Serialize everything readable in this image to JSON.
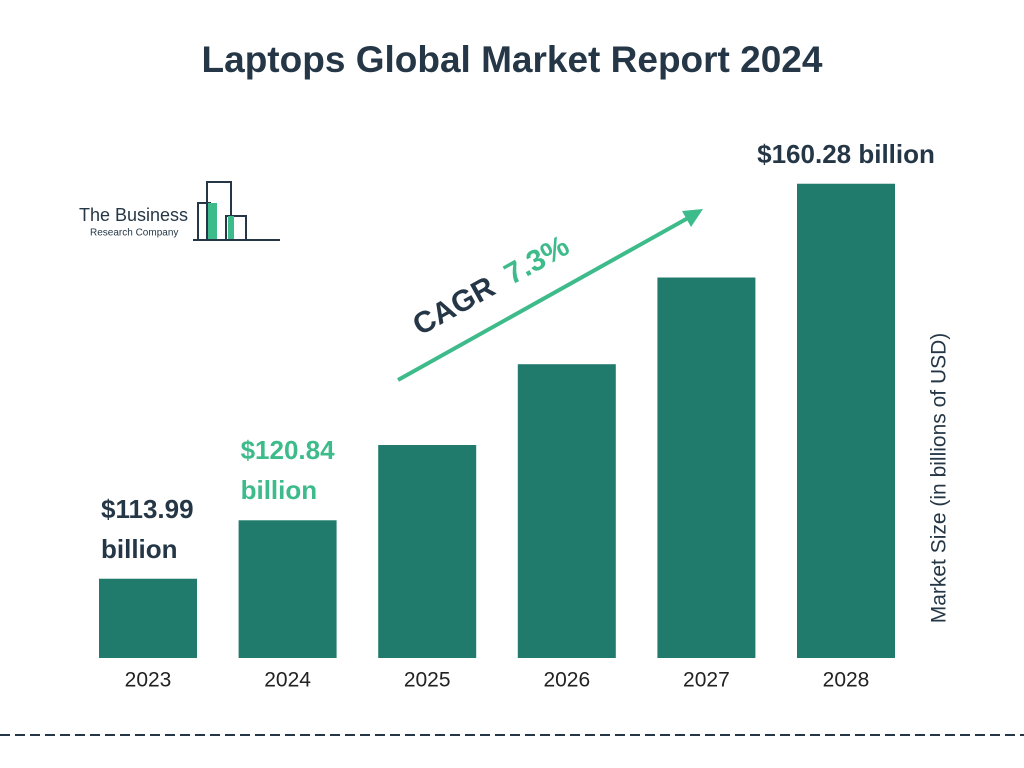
{
  "chart_data": {
    "type": "bar",
    "title": "Laptops Global Market Report 2024",
    "categories": [
      "2023",
      "2024",
      "2025",
      "2026",
      "2027",
      "2028"
    ],
    "values": [
      113.99,
      120.84,
      129.66,
      139.13,
      149.29,
      160.28
    ],
    "value_labels": [
      "$113.99 billion",
      "$120.84 billion",
      null,
      null,
      null,
      "$160.28 billion"
    ],
    "value_label_colors": [
      "#253746",
      "#3dbb8a",
      null,
      null,
      null,
      "#253746"
    ],
    "color": "#217b6c",
    "ylim": [
      104.7,
      165
    ],
    "y_label": "Market Size (in billions of USD)",
    "cagr": {
      "label": "CAGR",
      "value": "7.3%"
    },
    "logo": {
      "line1": "The Business",
      "line2": "Research Company"
    }
  }
}
